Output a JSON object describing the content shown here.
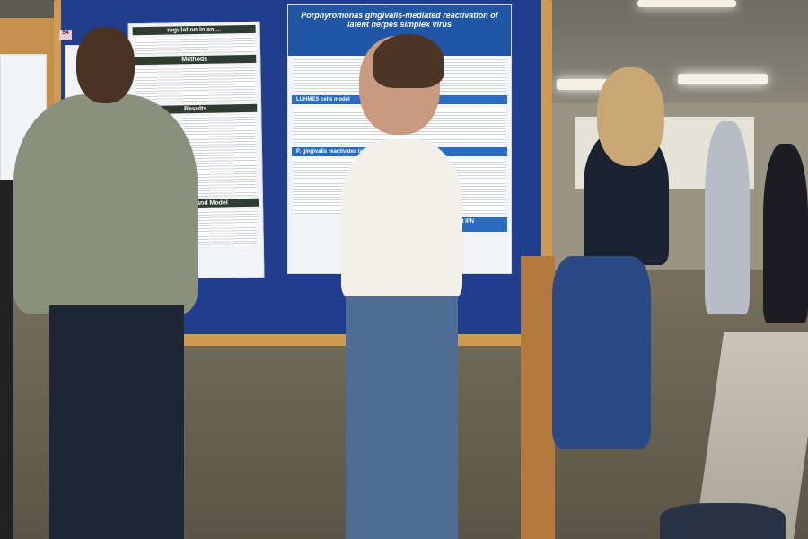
{
  "poster_left": {
    "number_tag": "94",
    "title_fragment": "regulation in an ...",
    "sections": [
      "Methods",
      "Results",
      "Summary and Model"
    ]
  },
  "poster_right": {
    "title": "Porphyromonas gingivalis-mediated reactivation of latent herpes simplex virus",
    "sections": [
      "LUHMES cells model",
      "P. gingivalis ... inhibit IFN production",
      "P. gingivalis reactivates latent form of ..."
    ]
  },
  "colors": {
    "board_blue": "#213d8e",
    "board_frame": "#d19a52",
    "poster_header": "#1f56a6"
  }
}
